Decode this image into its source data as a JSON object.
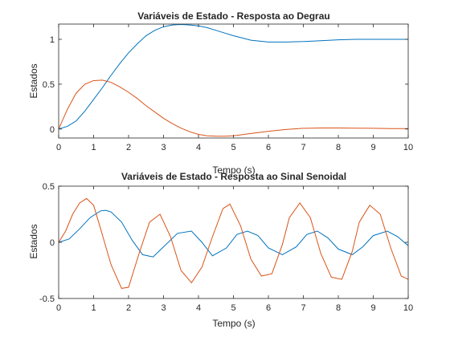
{
  "colors": {
    "series1": "#0072BD",
    "series2": "#D95319",
    "axis": "#262626"
  },
  "chart_data": [
    {
      "type": "line",
      "title": "Variáveis de Estado - Resposta ao Degrau",
      "xlabel": "Tempo (s)",
      "ylabel": "Estados",
      "xlim": [
        0,
        10
      ],
      "ylim": [
        -0.1,
        1.17
      ],
      "xticks": [
        0,
        1,
        2,
        3,
        4,
        5,
        6,
        7,
        8,
        9,
        10
      ],
      "xtick_labels": [
        "0",
        "1",
        "2",
        "3",
        "4",
        "5",
        "6",
        "7",
        "8",
        "9",
        "10"
      ],
      "yticks": [
        0,
        0.5,
        1
      ],
      "ytick_labels": [
        "0",
        "0.5",
        "1"
      ],
      "grid": false,
      "series": [
        {
          "x": [
            0,
            0.25,
            0.5,
            0.75,
            1,
            1.25,
            1.5,
            1.75,
            2,
            2.25,
            2.5,
            2.75,
            3,
            3.25,
            3.5,
            3.75,
            4,
            4.25,
            4.5,
            4.75,
            5,
            5.5,
            6,
            6.5,
            7,
            7.5,
            8,
            8.5,
            9,
            9.5,
            10
          ],
          "y": [
            0,
            0.03,
            0.09,
            0.2,
            0.33,
            0.46,
            0.6,
            0.73,
            0.85,
            0.95,
            1.04,
            1.1,
            1.14,
            1.16,
            1.165,
            1.16,
            1.15,
            1.13,
            1.1,
            1.07,
            1.04,
            0.99,
            0.97,
            0.97,
            0.975,
            0.985,
            0.995,
            1.0,
            1.0,
            1.0,
            1.0
          ]
        },
        {
          "x": [
            0,
            0.25,
            0.5,
            0.75,
            1,
            1.25,
            1.5,
            1.75,
            2,
            2.25,
            2.5,
            2.75,
            3,
            3.25,
            3.5,
            3.75,
            4,
            4.25,
            4.5,
            4.75,
            5,
            5.5,
            6,
            6.5,
            7,
            7.5,
            8,
            8.5,
            9,
            9.5,
            10
          ],
          "y": [
            0,
            0.22,
            0.4,
            0.5,
            0.54,
            0.545,
            0.52,
            0.47,
            0.41,
            0.34,
            0.26,
            0.19,
            0.12,
            0.06,
            0.01,
            -0.03,
            -0.06,
            -0.075,
            -0.08,
            -0.08,
            -0.075,
            -0.05,
            -0.025,
            -0.005,
            0.008,
            0.012,
            0.012,
            0.01,
            0.008,
            0.005,
            0.005
          ]
        }
      ]
    },
    {
      "type": "line",
      "title": "Variáveis de Estado - Resposta ao Sinal Senoidal",
      "xlabel": "Tempo (s)",
      "ylabel": "Estados",
      "xlim": [
        0,
        10
      ],
      "ylim": [
        -0.5,
        0.5
      ],
      "xticks": [
        0,
        1,
        2,
        3,
        4,
        5,
        6,
        7,
        8,
        9,
        10
      ],
      "xtick_labels": [
        "0",
        "1",
        "2",
        "3",
        "4",
        "5",
        "6",
        "7",
        "8",
        "9",
        "10"
      ],
      "yticks": [
        -0.5,
        0,
        0.5
      ],
      "ytick_labels": [
        "-0.5",
        "0",
        "0.5"
      ],
      "grid": false,
      "series": [
        {
          "x": [
            0,
            0.3,
            0.6,
            0.9,
            1.2,
            1.35,
            1.5,
            1.8,
            2.1,
            2.4,
            2.7,
            3.0,
            3.4,
            3.8,
            4.1,
            4.4,
            4.8,
            5.1,
            5.4,
            5.7,
            6.0,
            6.4,
            6.8,
            7.1,
            7.4,
            7.7,
            8.0,
            8.4,
            8.7,
            9.0,
            9.4,
            9.7,
            10
          ],
          "y": [
            0,
            0.03,
            0.12,
            0.22,
            0.28,
            0.285,
            0.27,
            0.18,
            0.02,
            -0.11,
            -0.13,
            -0.04,
            0.08,
            0.1,
            0.0,
            -0.12,
            -0.05,
            0.07,
            0.1,
            0.06,
            -0.05,
            -0.11,
            -0.04,
            0.07,
            0.1,
            0.04,
            -0.06,
            -0.11,
            -0.04,
            0.06,
            0.1,
            0.05,
            -0.03
          ]
        },
        {
          "x": [
            0,
            0.2,
            0.4,
            0.6,
            0.8,
            1.0,
            1.2,
            1.5,
            1.8,
            2.0,
            2.3,
            2.6,
            2.9,
            3.2,
            3.5,
            3.8,
            4.1,
            4.4,
            4.7,
            4.9,
            5.2,
            5.5,
            5.8,
            6.1,
            6.4,
            6.6,
            6.9,
            7.2,
            7.5,
            7.8,
            8.1,
            8.4,
            8.6,
            8.9,
            9.2,
            9.5,
            9.8,
            10
          ],
          "y": [
            0,
            0.1,
            0.25,
            0.35,
            0.39,
            0.33,
            0.12,
            -0.2,
            -0.41,
            -0.4,
            -0.1,
            0.18,
            0.25,
            0.05,
            -0.25,
            -0.36,
            -0.22,
            0.05,
            0.3,
            0.34,
            0.15,
            -0.15,
            -0.3,
            -0.28,
            -0.02,
            0.22,
            0.35,
            0.22,
            -0.1,
            -0.31,
            -0.33,
            -0.08,
            0.18,
            0.33,
            0.25,
            -0.05,
            -0.3,
            -0.33
          ]
        }
      ]
    }
  ]
}
